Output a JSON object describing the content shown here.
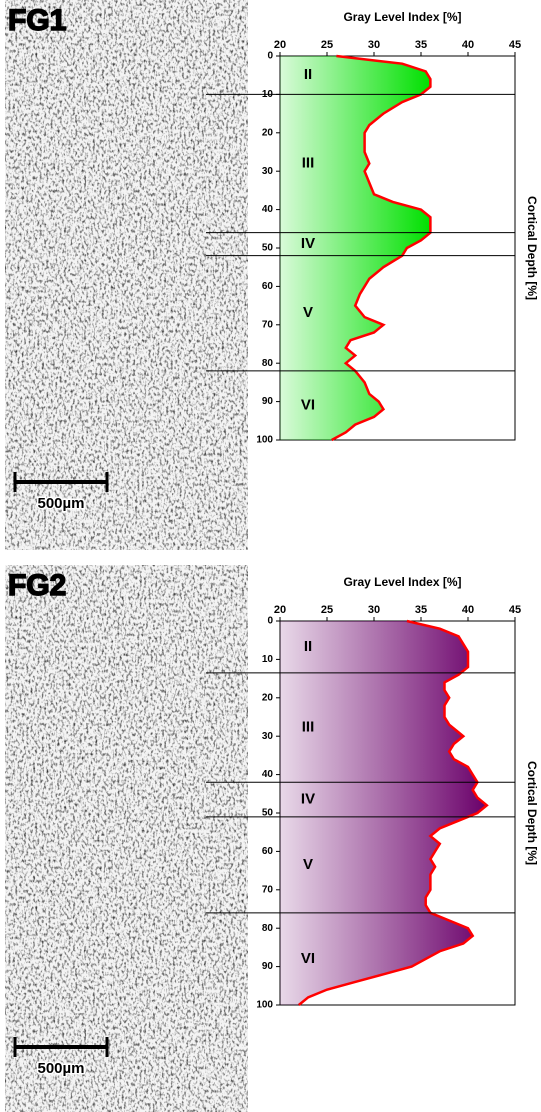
{
  "chart_data": [
    {
      "type": "area",
      "label": "FG1",
      "xlabel": "Gray Level Index [%]",
      "ylabel": "Cortical Depth [%]",
      "xlim": [
        20,
        45
      ],
      "xticks": [
        20,
        25,
        30,
        35,
        40,
        45
      ],
      "ylim": [
        0,
        100
      ],
      "yticks": [
        0,
        10,
        20,
        30,
        40,
        50,
        60,
        70,
        80,
        90,
        100
      ],
      "color": "#00e000",
      "line_color": "#ff0000",
      "scale_bar": "500µm",
      "layers": [
        "II",
        "III",
        "IV",
        "V",
        "VI"
      ],
      "boundaries": [
        10,
        46,
        52,
        82
      ],
      "y": [
        0,
        2,
        4,
        6,
        8,
        10,
        12,
        15,
        18,
        20,
        25,
        28,
        30,
        33,
        36,
        38,
        40,
        42,
        44,
        46,
        48,
        50,
        52,
        55,
        58,
        62,
        65,
        68,
        70,
        72,
        74,
        76,
        78,
        80,
        82,
        85,
        88,
        90,
        92,
        94,
        96,
        98,
        100
      ],
      "values": [
        26,
        33,
        35.5,
        36,
        36,
        35,
        33,
        31,
        29.5,
        29,
        29,
        29.5,
        29,
        29.5,
        30,
        32,
        35,
        36,
        36,
        36,
        35,
        33.5,
        33,
        31,
        29.5,
        28.5,
        28,
        29,
        31,
        30,
        27.5,
        27,
        28,
        27,
        28,
        29,
        29.5,
        30.5,
        31,
        30,
        28,
        27,
        25.5
      ]
    },
    {
      "type": "area",
      "label": "FG2",
      "xlabel": "Gray Level Index [%]",
      "ylabel": "Cortical Depth [%]",
      "xlim": [
        20,
        45
      ],
      "xticks": [
        20,
        25,
        30,
        35,
        40,
        45
      ],
      "ylim": [
        0,
        100
      ],
      "yticks": [
        0,
        10,
        20,
        30,
        40,
        50,
        60,
        70,
        80,
        90,
        100
      ],
      "color": "#6a006a",
      "line_color": "#ff0000",
      "scale_bar": "500µm",
      "layers": [
        "II",
        "III",
        "IV",
        "V",
        "VI"
      ],
      "boundaries": [
        13.5,
        42,
        51,
        76
      ],
      "y": [
        0,
        2,
        4,
        6,
        8,
        10,
        12,
        14,
        16,
        18,
        20,
        22,
        25,
        27,
        29,
        30,
        32,
        34,
        36,
        38,
        40,
        42,
        44,
        46,
        48,
        50,
        52,
        54,
        56,
        58,
        60,
        62,
        64,
        66,
        68,
        70,
        72,
        74,
        76,
        78,
        80,
        82,
        84,
        86,
        88,
        90,
        92,
        94,
        96,
        98,
        100
      ],
      "values": [
        33.5,
        37,
        39,
        39.5,
        40,
        40,
        40,
        39,
        37.5,
        37.5,
        38,
        37.5,
        37.5,
        38,
        39,
        39.5,
        38.5,
        38,
        38.5,
        40,
        40.5,
        41,
        40.5,
        41,
        42,
        41,
        39,
        37,
        36,
        37,
        36.5,
        36,
        36.5,
        36,
        36,
        36,
        35.5,
        35.5,
        36,
        38,
        40,
        40.5,
        39.5,
        37,
        35.5,
        34,
        31,
        28,
        25,
        23,
        22
      ]
    }
  ]
}
